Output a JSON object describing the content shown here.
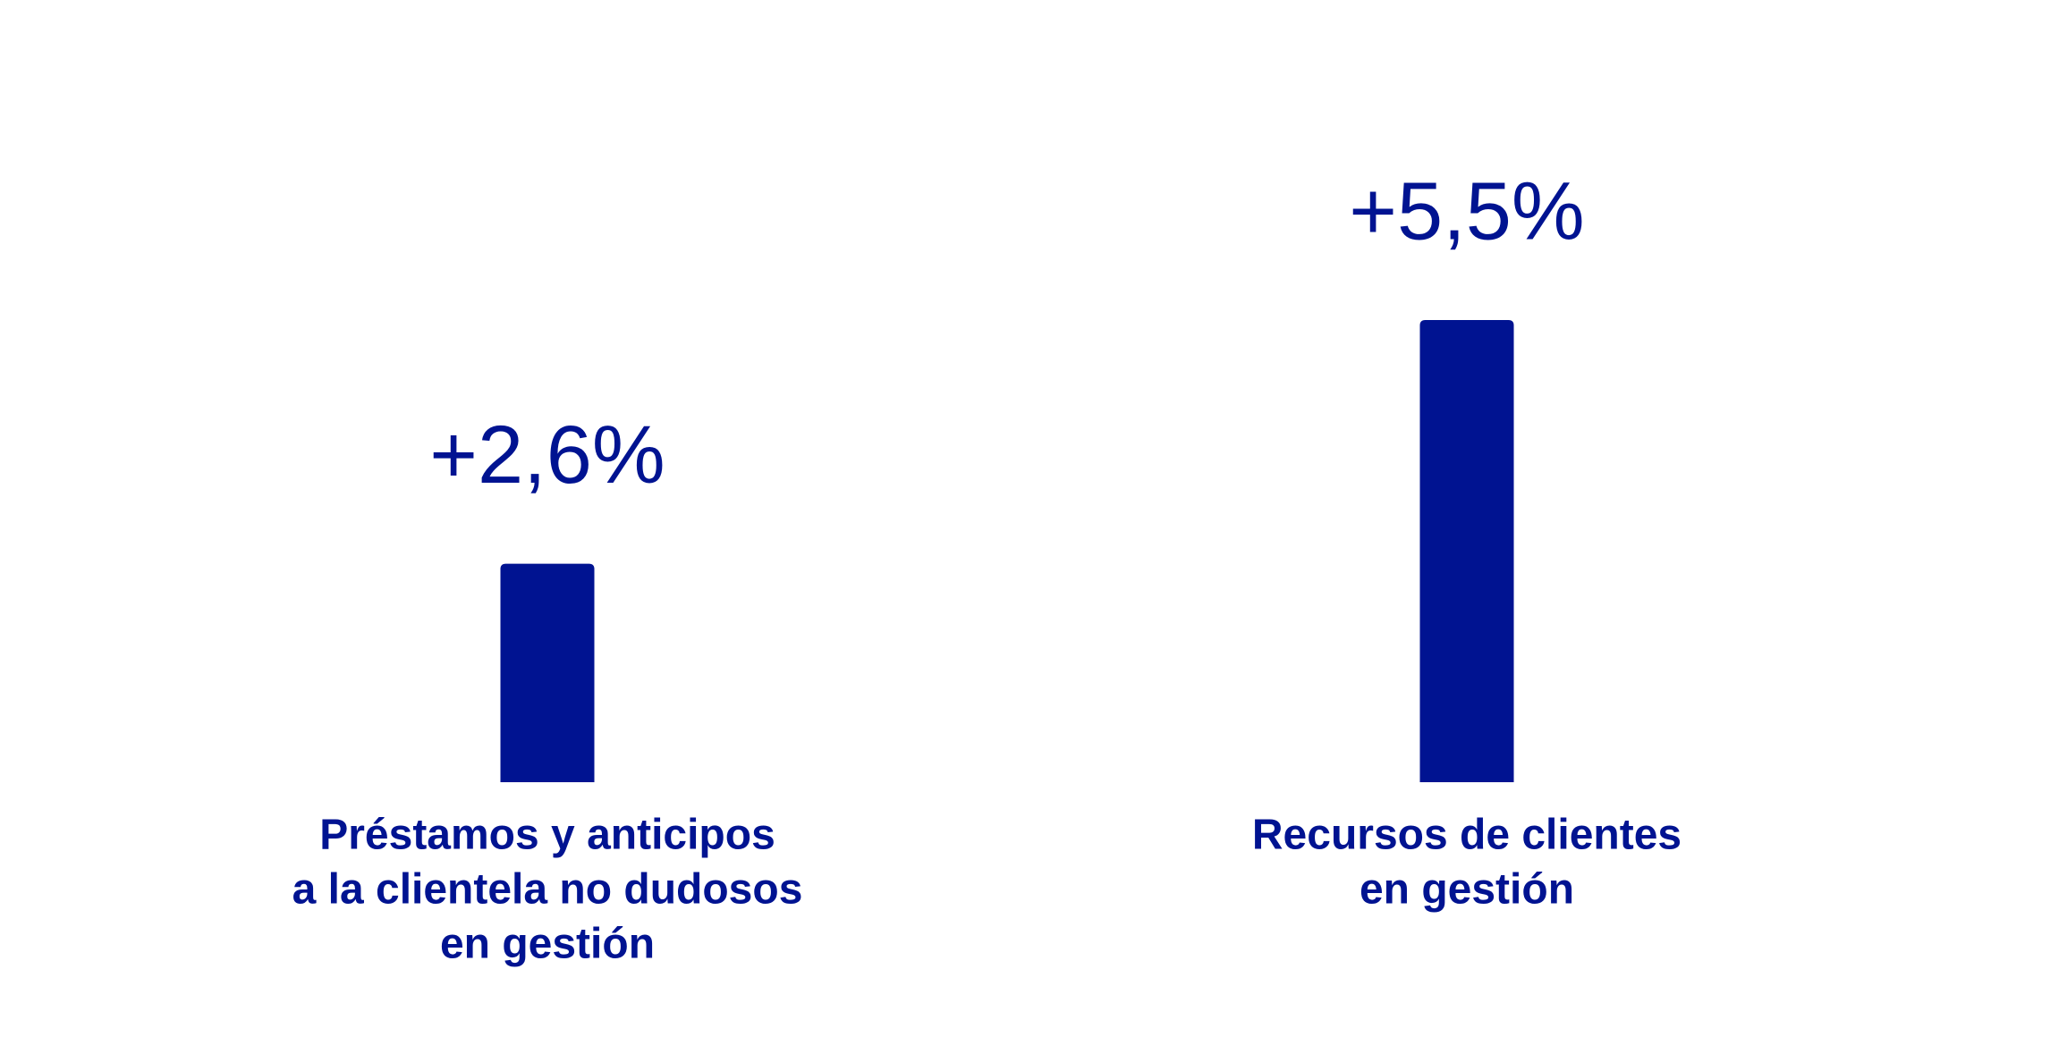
{
  "chart_data": {
    "type": "bar",
    "categories": [
      [
        "Préstamos y anticipos",
        "a la clientela no dudosos",
        "en gestión"
      ],
      [
        "Recursos de clientes",
        "en gestión"
      ]
    ],
    "values": [
      2.6,
      5.5
    ],
    "value_labels": [
      "+2,6%",
      "+5,5%"
    ],
    "color": "#001391"
  }
}
